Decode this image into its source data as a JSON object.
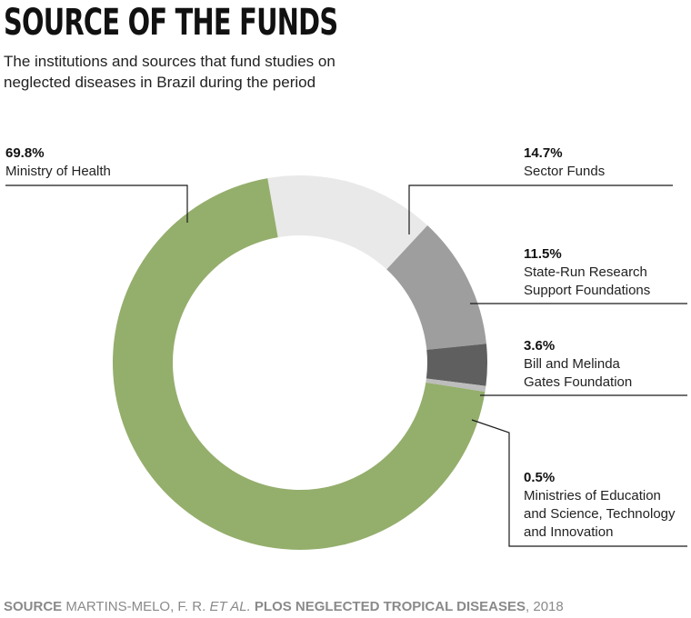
{
  "title": "SOURCE OF THE FUNDS",
  "subtitle": "The institutions and sources that fund studies on neglected diseases in Brazil during the period",
  "colors": {
    "ministry_of_health": "#94ae6c",
    "sector_funds": "#e9e9e9",
    "state_run": "#9e9e9e",
    "gates": "#5f5f5f",
    "ministries_education": "#bdbdbd",
    "leader_lines": "#1a1a1a"
  },
  "chart_data": {
    "type": "pie",
    "style": "donut",
    "slices": [
      {
        "label": "Sector Funds",
        "label_lines": [
          "Sector Funds"
        ],
        "value": 14.7,
        "value_text": "14.7%",
        "color": "#e9e9e9"
      },
      {
        "label": "State-Run Research Support Foundations",
        "label_lines": [
          "State-Run Research",
          "Support Foundations"
        ],
        "value": 11.5,
        "value_text": "11.5%",
        "color": "#9e9e9e"
      },
      {
        "label": "Bill and Melinda Gates Foundation",
        "label_lines": [
          "Bill and Melinda",
          "Gates Foundation"
        ],
        "value": 3.6,
        "value_text": "3.6%",
        "color": "#5f5f5f"
      },
      {
        "label": "Ministries of Education and Science, Technology and Innovation",
        "label_lines": [
          "Ministries of Education",
          "and Science, Technology",
          "and Innovation"
        ],
        "value": 0.5,
        "value_text": "0.5%",
        "color": "#bdbdbd"
      },
      {
        "label": "Ministry of Health",
        "label_lines": [
          "Ministry of Health"
        ],
        "value": 69.8,
        "value_text": "69.8%",
        "color": "#94ae6c"
      }
    ]
  },
  "source": {
    "label": "SOURCE",
    "authors": "MARTINS-MELO, F. R.",
    "etal": "ET AL.",
    "journal": "PLOS NEGLECTED TROPICAL DISEASES",
    "year": ", 2018"
  }
}
